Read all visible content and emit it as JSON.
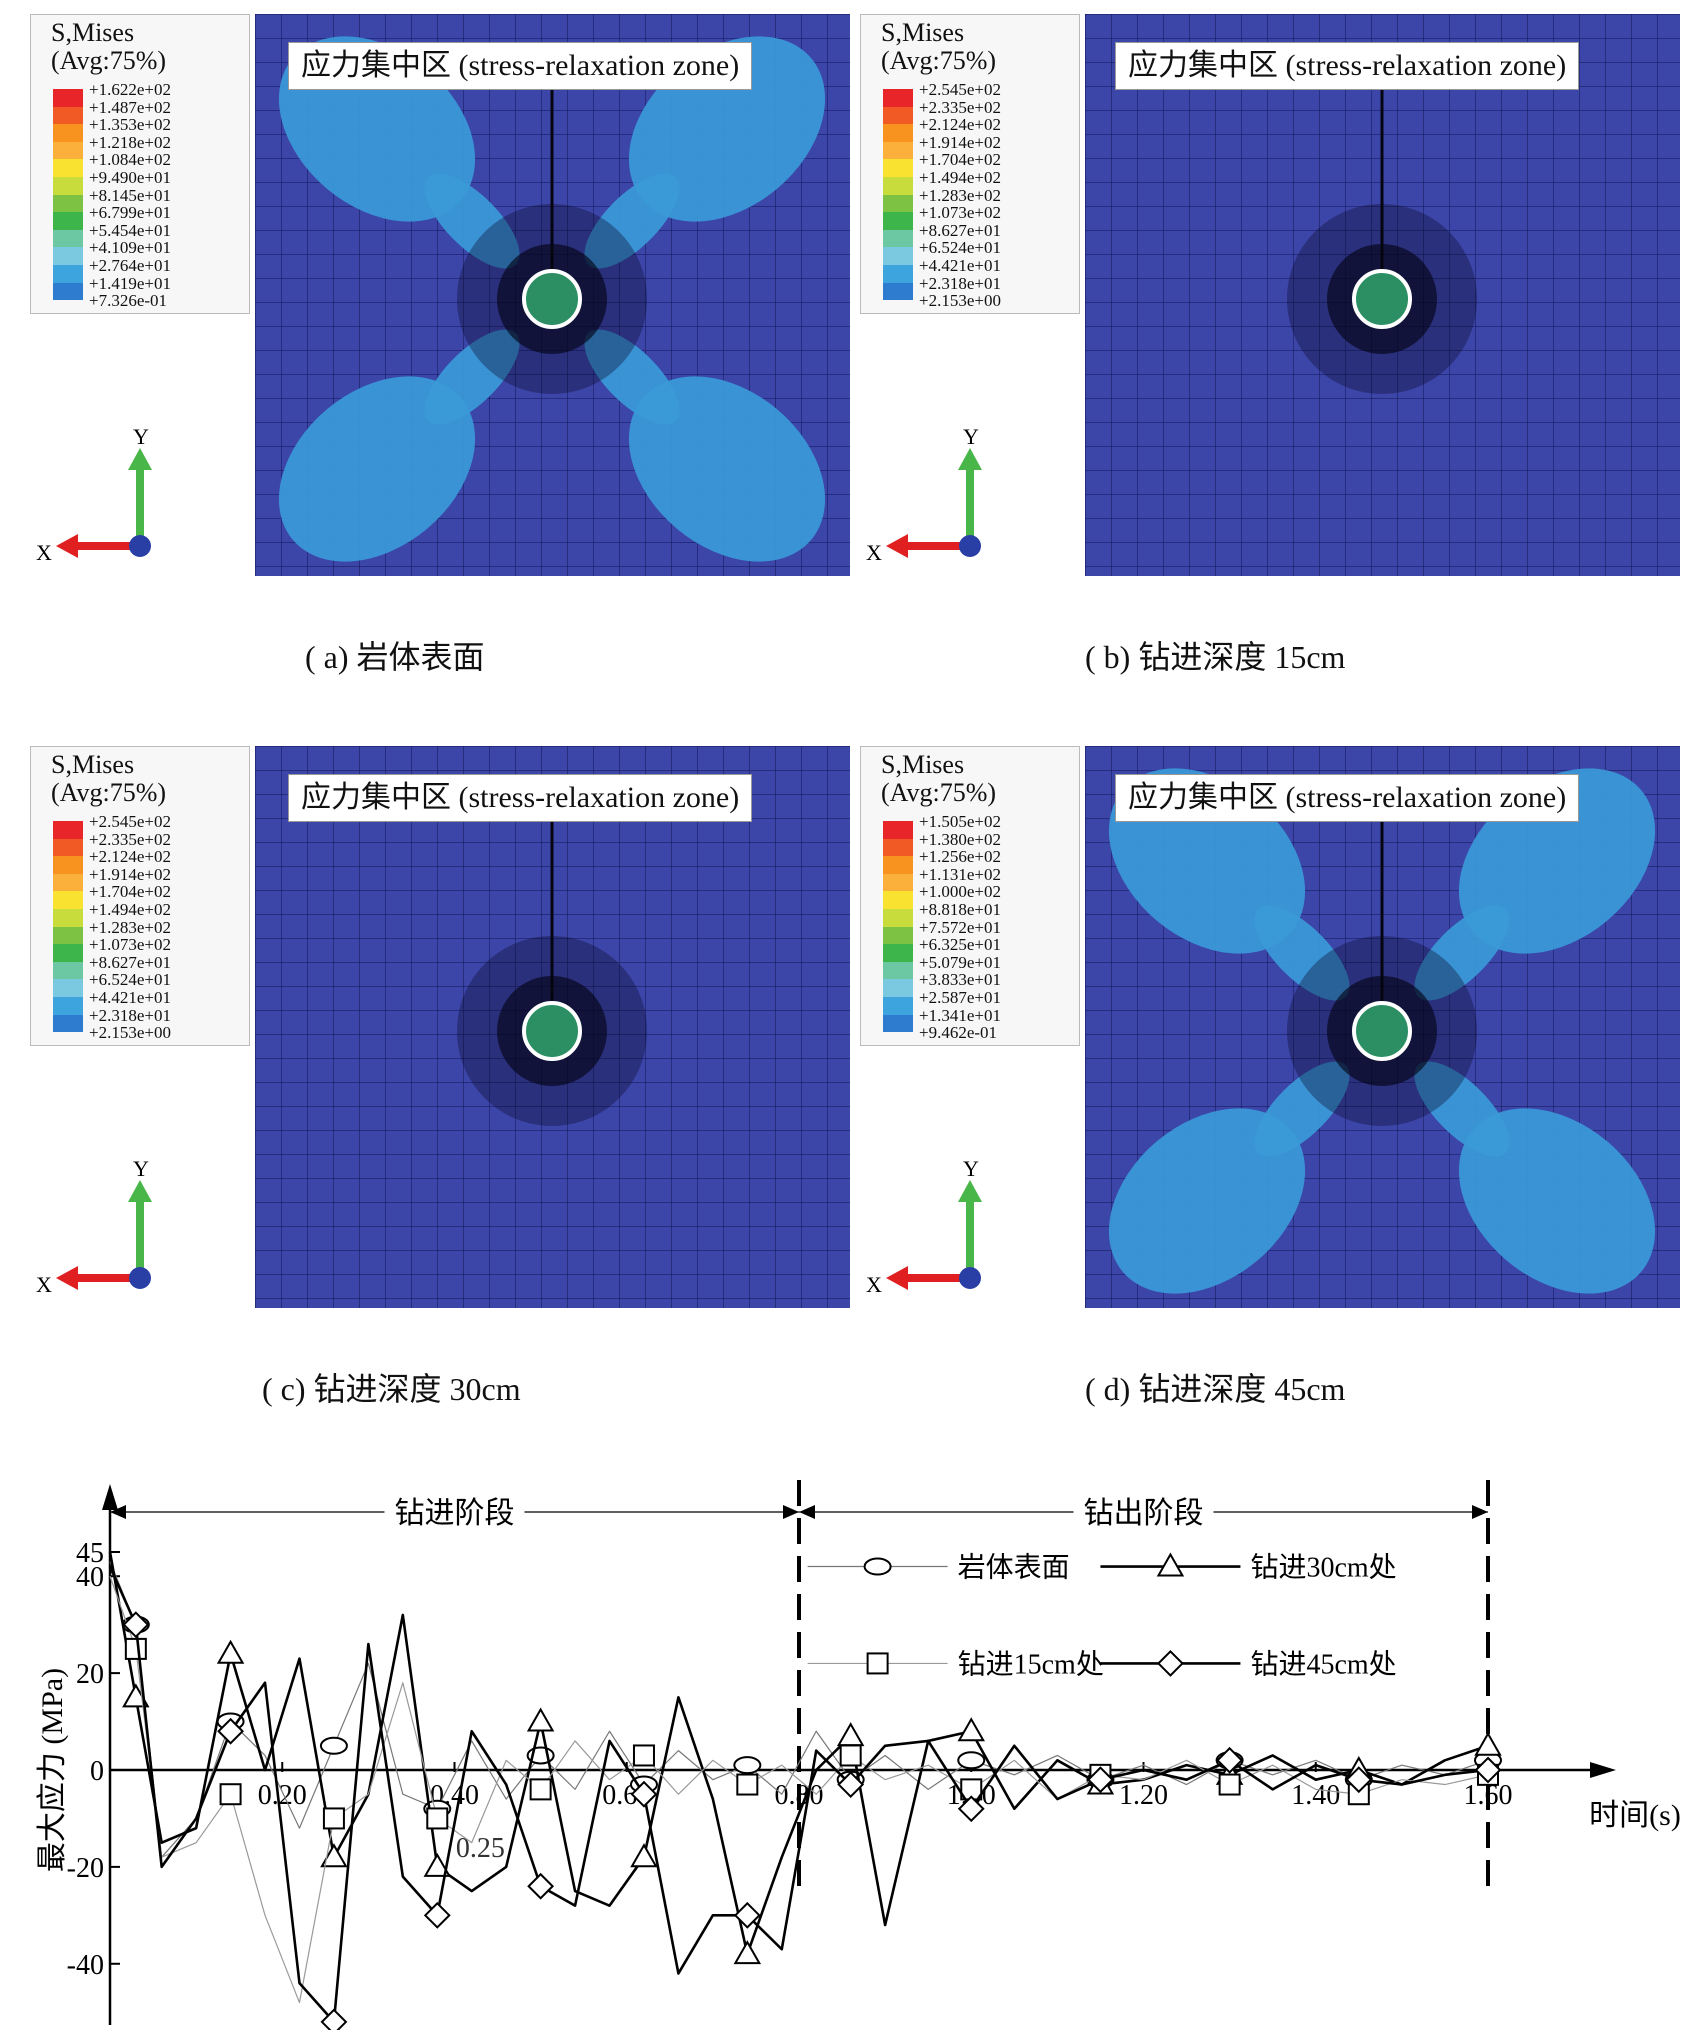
{
  "panels": [
    {
      "id": "a",
      "legend_title": "S,Mises",
      "legend_avg": "(Avg:75%)",
      "values": [
        "+1.622e+02",
        "+1.487e+02",
        "+1.353e+02",
        "+1.218e+02",
        "+1.084e+02",
        "+9.490e+01",
        "+8.145e+01",
        "+6.799e+01",
        "+5.454e+01",
        "+4.109e+01",
        "+2.764e+01",
        "+1.419e+01",
        "+7.326e-01"
      ],
      "zone_label": "应力集中区 (stress-relaxation zone)",
      "caption": "( a)   岩体表面",
      "axis_y": "Y",
      "axis_x": "X",
      "lobes": true
    },
    {
      "id": "b",
      "legend_title": "S,Mises",
      "legend_avg": "(Avg:75%)",
      "values": [
        "+2.545e+02",
        "+2.335e+02",
        "+2.124e+02",
        "+1.914e+02",
        "+1.704e+02",
        "+1.494e+02",
        "+1.283e+02",
        "+1.073e+02",
        "+8.627e+01",
        "+6.524e+01",
        "+4.421e+01",
        "+2.318e+01",
        "+2.153e+00"
      ],
      "zone_label": "应力集中区 (stress-relaxation zone)",
      "caption": "( b)   钻进深度 15cm",
      "axis_y": "Y",
      "axis_x": "X",
      "lobes": false
    },
    {
      "id": "c",
      "legend_title": "S,Mises",
      "legend_avg": "(Avg:75%)",
      "values": [
        "+2.545e+02",
        "+2.335e+02",
        "+2.124e+02",
        "+1.914e+02",
        "+1.704e+02",
        "+1.494e+02",
        "+1.283e+02",
        "+1.073e+02",
        "+8.627e+01",
        "+6.524e+01",
        "+4.421e+01",
        "+2.318e+01",
        "+2.153e+00"
      ],
      "zone_label": "应力集中区 (stress-relaxation zone)",
      "caption": "( c)   钻进深度 30cm",
      "axis_y": "Y",
      "axis_x": "X",
      "lobes": false
    },
    {
      "id": "d",
      "legend_title": "S,Mises",
      "legend_avg": "(Avg:75%)",
      "values": [
        "+1.505e+02",
        "+1.380e+02",
        "+1.256e+02",
        "+1.131e+02",
        "+1.000e+02",
        "+8.818e+01",
        "+7.572e+01",
        "+6.325e+01",
        "+5.079e+01",
        "+3.833e+01",
        "+2.587e+01",
        "+1.341e+01",
        "+9.462e-01"
      ],
      "zone_label": "应力集中区 (stress-relaxation zone)",
      "caption": "( d)   钻进深度 45cm",
      "axis_y": "Y",
      "axis_x": "X",
      "lobes": true
    }
  ],
  "legend_colors": [
    "#e8262a",
    "#f15a24",
    "#f7931e",
    "#fbb03b",
    "#f9e330",
    "#c8dc3c",
    "#7dc242",
    "#3db54a",
    "#6cc7a3",
    "#7ac9e0",
    "#3ea4de",
    "#2e7ccf",
    "#2a3fa6"
  ],
  "chart_data": {
    "type": "line",
    "xlabel": "时间(s)",
    "ylabel": "最大应力 (MPa)",
    "xlim": [
      0,
      1.66
    ],
    "ylim": [
      -55,
      50
    ],
    "y_ticks": [
      "45",
      "40",
      "20",
      "0",
      "-20",
      "-40"
    ],
    "x_ticks": [
      "0.20",
      "0.40",
      "0.60",
      "0.80",
      "1.00",
      "1.20",
      "1.40",
      "1.60"
    ],
    "annotation": "0.25",
    "phases": [
      {
        "label": "钻进阶段",
        "from": 0,
        "to": 0.8
      },
      {
        "label": "钻出阶段",
        "from": 0.8,
        "to": 1.6
      }
    ],
    "legend": [
      "岩体表面",
      "钻进30cm处",
      "钻进15cm处",
      "钻进45cm处"
    ],
    "series": [
      {
        "name": "岩体表面",
        "x": [
          0,
          0.03,
          0.06,
          0.1,
          0.14,
          0.18,
          0.22,
          0.26,
          0.3,
          0.34,
          0.38,
          0.42,
          0.46,
          0.5,
          0.54,
          0.58,
          0.62,
          0.66,
          0.7,
          0.74,
          0.78,
          0.82,
          0.86,
          0.9,
          0.95,
          1.0,
          1.05,
          1.1,
          1.15,
          1.2,
          1.25,
          1.3,
          1.35,
          1.4,
          1.45,
          1.5,
          1.55,
          1.6
        ],
        "y": [
          43,
          30,
          -18,
          -10,
          10,
          3,
          -12,
          5,
          22,
          -5,
          -8,
          6,
          -6,
          3,
          -4,
          8,
          -3,
          4,
          -2,
          1,
          -5,
          8,
          -2,
          3,
          -4,
          2,
          -1,
          3,
          -2,
          1,
          -3,
          2,
          -1,
          2,
          -2,
          1,
          -1,
          2
        ]
      },
      {
        "name": "钻进30cm处",
        "x": [
          0,
          0.03,
          0.06,
          0.1,
          0.14,
          0.18,
          0.22,
          0.26,
          0.3,
          0.34,
          0.38,
          0.42,
          0.46,
          0.5,
          0.54,
          0.58,
          0.62,
          0.66,
          0.7,
          0.74,
          0.78,
          0.82,
          0.86,
          0.9,
          0.95,
          1.0,
          1.05,
          1.1,
          1.15,
          1.2,
          1.25,
          1.3,
          1.35,
          1.4,
          1.45,
          1.5,
          1.55,
          1.6
        ],
        "y": [
          45,
          15,
          -15,
          -12,
          24,
          0,
          23,
          -18,
          -5,
          32,
          -20,
          -25,
          -20,
          10,
          -25,
          -28,
          -18,
          15,
          -6,
          -38,
          -18,
          0,
          7,
          -32,
          6,
          8,
          -8,
          2,
          -3,
          -2,
          1,
          -1,
          3,
          -2,
          0,
          -3,
          2,
          5
        ]
      },
      {
        "name": "钻进15cm处",
        "x": [
          0,
          0.03,
          0.06,
          0.1,
          0.14,
          0.18,
          0.22,
          0.26,
          0.3,
          0.34,
          0.38,
          0.42,
          0.46,
          0.5,
          0.54,
          0.58,
          0.62,
          0.66,
          0.7,
          0.74,
          0.78,
          0.82,
          0.86,
          0.9,
          0.95,
          1.0,
          1.05,
          1.1,
          1.15,
          1.2,
          1.25,
          1.3,
          1.35,
          1.4,
          1.45,
          1.5,
          1.55,
          1.6
        ],
        "y": [
          40,
          25,
          -18,
          -15,
          -5,
          -30,
          -48,
          -10,
          -5,
          18,
          -10,
          -15,
          2,
          -4,
          6,
          -2,
          3,
          -5,
          2,
          -3,
          1,
          -5,
          3,
          -2,
          1,
          -4,
          2,
          -6,
          -1,
          -2,
          2,
          -3,
          1,
          -4,
          -5,
          -2,
          -3,
          -1
        ]
      },
      {
        "name": "钻进45cm处",
        "x": [
          0,
          0.03,
          0.06,
          0.1,
          0.14,
          0.18,
          0.22,
          0.26,
          0.3,
          0.34,
          0.38,
          0.42,
          0.46,
          0.5,
          0.54,
          0.58,
          0.62,
          0.66,
          0.7,
          0.74,
          0.78,
          0.82,
          0.86,
          0.9,
          0.95,
          1.0,
          1.05,
          1.1,
          1.15,
          1.2,
          1.25,
          1.3,
          1.35,
          1.4,
          1.45,
          1.5,
          1.55,
          1.6
        ],
        "y": [
          42,
          30,
          -20,
          -10,
          8,
          18,
          -44,
          -52,
          26,
          -22,
          -30,
          8,
          -3,
          -24,
          -28,
          6,
          -5,
          -42,
          -30,
          -30,
          -37,
          4,
          -3,
          5,
          6,
          -8,
          5,
          -6,
          -2,
          0,
          -2,
          2,
          -4,
          1,
          -2,
          -3,
          -1,
          0
        ]
      }
    ]
  }
}
